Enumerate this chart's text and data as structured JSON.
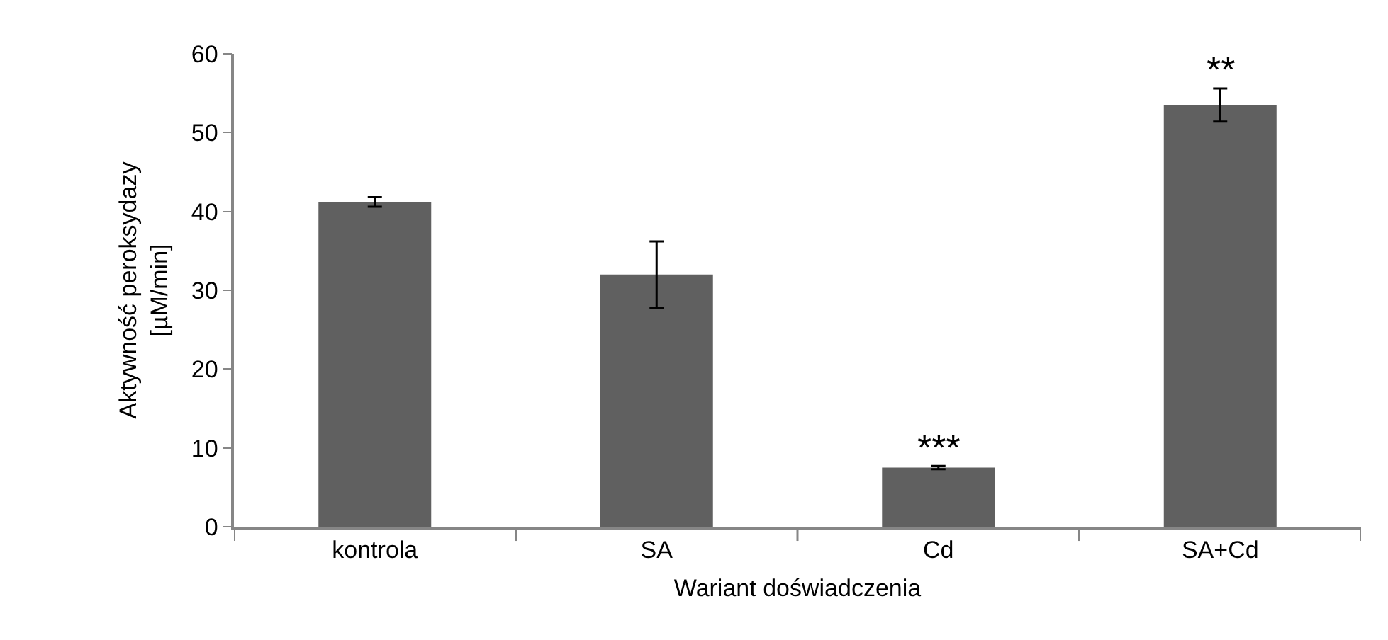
{
  "chart_data": {
    "type": "bar",
    "xlabel": "Wariant doświadczenia",
    "ylabel": "Aktywność peroksydazy\n[µM/min]",
    "categories": [
      "kontrola",
      "SA",
      "Cd",
      "SA+Cd"
    ],
    "values": [
      41.2,
      32,
      7.5,
      53.5
    ],
    "errors": [
      0.6,
      4.2,
      0.2,
      2.1
    ],
    "color": "#606060",
    "ylim": [
      0,
      60
    ],
    "yticks": [
      0,
      10,
      20,
      30,
      40,
      50,
      60
    ],
    "grid": false,
    "annotations": [
      {
        "text": "***",
        "x": "Cd",
        "y": 7.7
      },
      {
        "text": "**",
        "x": "SA+Cd",
        "y": 55.6
      }
    ]
  }
}
